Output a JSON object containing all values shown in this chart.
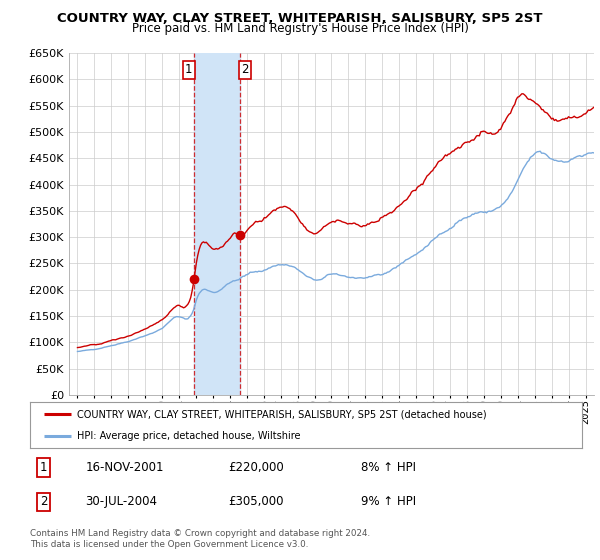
{
  "title": "COUNTRY WAY, CLAY STREET, WHITEPARISH, SALISBURY, SP5 2ST",
  "subtitle": "Price paid vs. HM Land Registry's House Price Index (HPI)",
  "legend_line1": "COUNTRY WAY, CLAY STREET, WHITEPARISH, SALISBURY, SP5 2ST (detached house)",
  "legend_line2": "HPI: Average price, detached house, Wiltshire",
  "transaction1_date": "16-NOV-2001",
  "transaction1_price": "£220,000",
  "transaction1_hpi": "8% ↑ HPI",
  "transaction2_date": "30-JUL-2004",
  "transaction2_price": "£305,000",
  "transaction2_hpi": "9% ↑ HPI",
  "footer": "Contains HM Land Registry data © Crown copyright and database right 2024.\nThis data is licensed under the Open Government Licence v3.0.",
  "red_color": "#cc0000",
  "blue_color": "#7aaadd",
  "shade_color": "#d0e4f7",
  "grid_color": "#cccccc",
  "ylim": [
    0,
    650000
  ],
  "yticks": [
    0,
    50000,
    100000,
    150000,
    200000,
    250000,
    300000,
    350000,
    400000,
    450000,
    500000,
    550000,
    600000,
    650000
  ],
  "transaction1_x": 2001.88,
  "transaction1_y": 220000,
  "transaction2_x": 2004.58,
  "transaction2_y": 305000,
  "shade1_xmin": 2001.88,
  "shade1_xmax": 2004.58,
  "xmin": 1995.0,
  "xmax": 2025.5
}
